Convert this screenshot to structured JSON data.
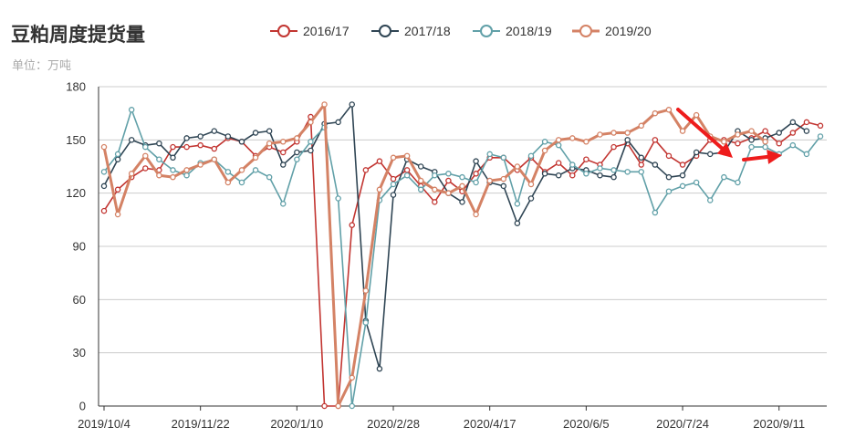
{
  "header": {
    "title": "豆粕周度提货量",
    "unit_label": "单位：万吨"
  },
  "colors": {
    "2016/17": "#c23531",
    "2017/18": "#2f4554",
    "2018/19": "#61a0a8",
    "2019/20": "#d48265",
    "annotation_arrow": "#ee1c1c",
    "grid": "#cccccc"
  },
  "legend": [
    {
      "name": "2016/17"
    },
    {
      "name": "2017/18"
    },
    {
      "name": "2018/19"
    },
    {
      "name": "2019/20"
    }
  ],
  "chart_data": {
    "type": "line",
    "title": "豆粕周度提货量",
    "subtitle": "单位：万吨",
    "xlabel": "",
    "ylabel": "",
    "ylim": [
      0,
      180
    ],
    "yticks": [
      0,
      30,
      60,
      90,
      120,
      150,
      180
    ],
    "grid": true,
    "legend_position": "top",
    "x_tick_labels": [
      {
        "index": 0,
        "label": "2019/10/4"
      },
      {
        "index": 7,
        "label": "2019/11/22"
      },
      {
        "index": 14,
        "label": "2020/1/10"
      },
      {
        "index": 21,
        "label": "2020/2/28"
      },
      {
        "index": 28,
        "label": "2020/4/17"
      },
      {
        "index": 35,
        "label": "2020/6/5"
      },
      {
        "index": 42,
        "label": "2020/7/24"
      },
      {
        "index": 49,
        "label": "2020/9/11"
      }
    ],
    "n_points": 53,
    "series": [
      {
        "name": "2016/17",
        "values": [
          110,
          122,
          129,
          134,
          133,
          146,
          146,
          147,
          145,
          151,
          149,
          141,
          146,
          143,
          149,
          163,
          0,
          0,
          102,
          133,
          138,
          128,
          133,
          124,
          115,
          127,
          121,
          131,
          140,
          140,
          133,
          140,
          132,
          137,
          130,
          139,
          136,
          146,
          148,
          136,
          150,
          141,
          136,
          141,
          150,
          150,
          148,
          151,
          155,
          148,
          154,
          160,
          158
        ]
      },
      {
        "name": "2017/18",
        "values": [
          124,
          139,
          150,
          147,
          148,
          140,
          151,
          152,
          155,
          152,
          149,
          154,
          155,
          136,
          143,
          144,
          159,
          160,
          170,
          48,
          21,
          119,
          139,
          135,
          132,
          120,
          115,
          138,
          126,
          124,
          103,
          117,
          131,
          130,
          134,
          133,
          130,
          129,
          150,
          140,
          136,
          129,
          130,
          143,
          142,
          143,
          155,
          150,
          151,
          154,
          160,
          155,
          null
        ]
      },
      {
        "name": "2018/19",
        "values": [
          132,
          142,
          167,
          146,
          139,
          133,
          130,
          137,
          139,
          132,
          126,
          133,
          129,
          114,
          139,
          149,
          157,
          117,
          0,
          47,
          116,
          125,
          130,
          122,
          130,
          131,
          129,
          126,
          142,
          140,
          114,
          141,
          149,
          147,
          136,
          131,
          134,
          133,
          132,
          132,
          109,
          121,
          124,
          126,
          116,
          129,
          126,
          146,
          146,
          142,
          147,
          142,
          152
        ]
      },
      {
        "name": "2019/20",
        "values": [
          146,
          108,
          131,
          141,
          130,
          129,
          133,
          136,
          139,
          126,
          133,
          140,
          148,
          149,
          151,
          160,
          170,
          0,
          16,
          65,
          122,
          140,
          141,
          127,
          122,
          120,
          124,
          108,
          127,
          128,
          135,
          125,
          144,
          150,
          151,
          149,
          153,
          154,
          154,
          158,
          165,
          167,
          155,
          164,
          152,
          149,
          153,
          155,
          149,
          null,
          null,
          null,
          null
        ]
      }
    ],
    "annotations": [
      {
        "type": "arrow",
        "label": ""
      },
      {
        "type": "arrow",
        "label": ""
      }
    ]
  }
}
